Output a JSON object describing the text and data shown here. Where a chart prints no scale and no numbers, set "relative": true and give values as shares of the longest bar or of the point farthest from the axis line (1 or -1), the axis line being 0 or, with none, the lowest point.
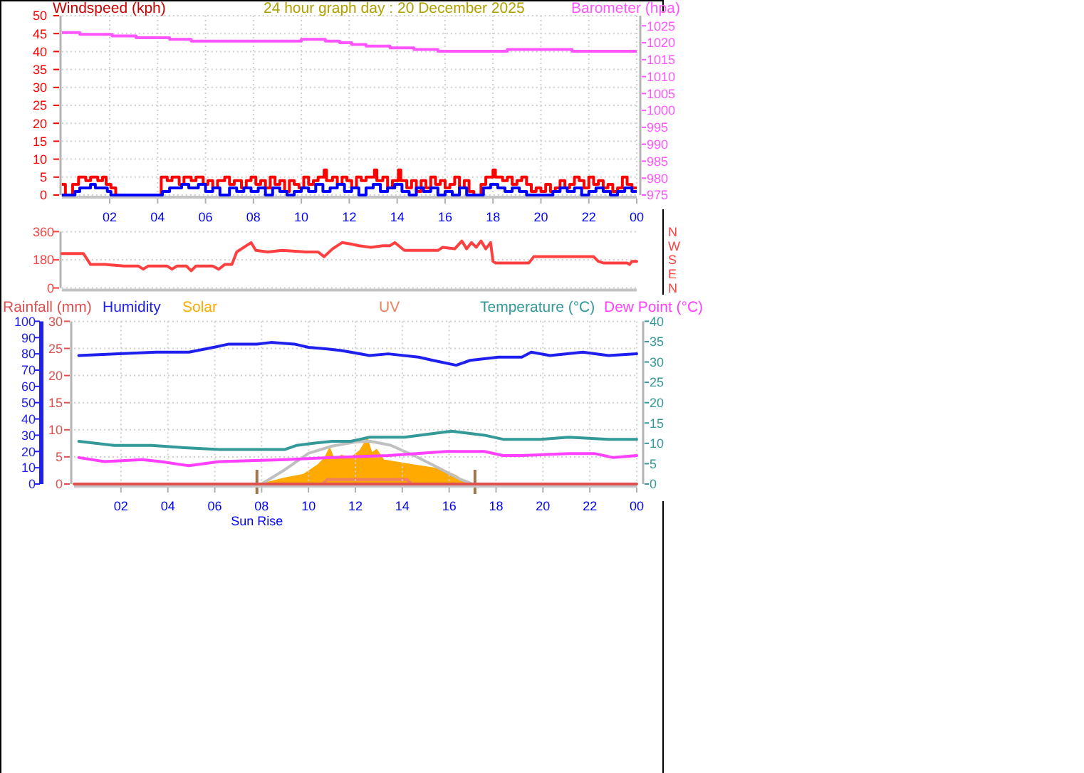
{
  "chart_data": [
    {
      "type": "step",
      "title": "24 hour graph day : 20 December 2025",
      "ylabel": "Windspeed (kph)",
      "y2label": "Barometer (hpa)",
      "xlim": [
        "2025-12-20T00:00",
        "2025-12-21T00:00"
      ],
      "xticks": [
        {
          "value": "2025-12-20T02:00",
          "label": "02"
        },
        {
          "value": "2025-12-20T04:00",
          "label": "04"
        },
        {
          "value": "2025-12-20T06:00",
          "label": "06"
        },
        {
          "value": "2025-12-20T08:00",
          "label": "08"
        },
        {
          "value": "2025-12-20T10:00",
          "label": "10"
        },
        {
          "value": "2025-12-20T12:00",
          "label": "12"
        },
        {
          "value": "2025-12-20T14:00",
          "label": "14"
        },
        {
          "value": "2025-12-20T16:00",
          "label": "16"
        },
        {
          "value": "2025-12-20T18:00",
          "label": "18"
        },
        {
          "value": "2025-12-20T20:00",
          "label": "20"
        },
        {
          "value": "2025-12-20T22:00",
          "label": "22"
        },
        {
          "value": "2025-12-21T00:00",
          "label": "00"
        }
      ],
      "ylim": [
        0,
        50
      ],
      "yticks": [
        0,
        5,
        10,
        15,
        20,
        25,
        30,
        35,
        40,
        45,
        50
      ],
      "y2lim": [
        975,
        1028
      ],
      "y2ticks": [
        975,
        980,
        985,
        990,
        995,
        1000,
        1005,
        1010,
        1015,
        1020,
        1025
      ],
      "grid": true,
      "series": [
        {
          "color": "#ff0000",
          "x": [
            "2025-12-20T00:00",
            "2025-12-20T00:09",
            "2025-12-20T00:27",
            "2025-12-20T00:42",
            "2025-12-20T01:00",
            "2025-12-20T01:12",
            "2025-12-20T01:30",
            "2025-12-20T01:42",
            "2025-12-20T01:51",
            "2025-12-20T02:03",
            "2025-12-20T02:15",
            "2025-12-20T04:09",
            "2025-12-20T04:24",
            "2025-12-20T04:36",
            "2025-12-20T04:54",
            "2025-12-20T05:06",
            "2025-12-20T05:24",
            "2025-12-20T05:36",
            "2025-12-20T05:54",
            "2025-12-20T06:06",
            "2025-12-20T06:18",
            "2025-12-20T06:30",
            "2025-12-20T06:48",
            "2025-12-20T07:00",
            "2025-12-20T07:12",
            "2025-12-20T07:30",
            "2025-12-20T07:42",
            "2025-12-20T07:54",
            "2025-12-20T08:06",
            "2025-12-20T08:18",
            "2025-12-20T08:30",
            "2025-12-20T08:42",
            "2025-12-20T08:54",
            "2025-12-20T09:06",
            "2025-12-20T09:18",
            "2025-12-20T09:30",
            "2025-12-20T09:42",
            "2025-12-20T09:54",
            "2025-12-20T10:06",
            "2025-12-20T10:18",
            "2025-12-20T10:30",
            "2025-12-20T10:42",
            "2025-12-20T10:57",
            "2025-12-20T11:03",
            "2025-12-20T11:18",
            "2025-12-20T11:30",
            "2025-12-20T11:42",
            "2025-12-20T11:54",
            "2025-12-20T12:06",
            "2025-12-20T12:18",
            "2025-12-20T12:30",
            "2025-12-20T12:42",
            "2025-12-20T13:03",
            "2025-12-20T13:09",
            "2025-12-20T13:24",
            "2025-12-20T13:36",
            "2025-12-20T13:48",
            "2025-12-20T14:03",
            "2025-12-20T14:09",
            "2025-12-20T14:24",
            "2025-12-20T14:36",
            "2025-12-20T14:48",
            "2025-12-20T15:00",
            "2025-12-20T15:12",
            "2025-12-20T15:24",
            "2025-12-20T15:36",
            "2025-12-20T15:48",
            "2025-12-20T16:00",
            "2025-12-20T16:12",
            "2025-12-20T16:24",
            "2025-12-20T16:36",
            "2025-12-20T16:48",
            "2025-12-20T17:00",
            "2025-12-20T17:12",
            "2025-12-20T17:30",
            "2025-12-20T17:42",
            "2025-12-20T18:00",
            "2025-12-20T18:06",
            "2025-12-20T18:24",
            "2025-12-20T18:36",
            "2025-12-20T18:48",
            "2025-12-20T19:00",
            "2025-12-20T19:12",
            "2025-12-20T19:24",
            "2025-12-20T19:36",
            "2025-12-20T19:48",
            "2025-12-20T20:00",
            "2025-12-20T20:12",
            "2025-12-20T20:24",
            "2025-12-20T20:36",
            "2025-12-20T20:48",
            "2025-12-20T21:00",
            "2025-12-20T21:12",
            "2025-12-20T21:24",
            "2025-12-20T21:36",
            "2025-12-20T21:48",
            "2025-12-20T22:00",
            "2025-12-20T22:12",
            "2025-12-20T22:24",
            "2025-12-20T22:36",
            "2025-12-20T22:48",
            "2025-12-20T23:00",
            "2025-12-20T23:12",
            "2025-12-20T23:24",
            "2025-12-20T23:36",
            "2025-12-20T23:48",
            "2025-12-21T00:00"
          ],
          "values": [
            3,
            0,
            3,
            5,
            4,
            5,
            4,
            5,
            3,
            2,
            0,
            5,
            4,
            5,
            3,
            5,
            4,
            5,
            3,
            4,
            2,
            4,
            5,
            3,
            4,
            2,
            4,
            5,
            3,
            4,
            2,
            5,
            3,
            4,
            1,
            4,
            3,
            2,
            5,
            3,
            4,
            5,
            7,
            4,
            5,
            3,
            5,
            4,
            2,
            5,
            4,
            5,
            7,
            4,
            5,
            2,
            4,
            7,
            4,
            2,
            4,
            1,
            4,
            2,
            5,
            3,
            4,
            2,
            3,
            5,
            2,
            4,
            1,
            0,
            3,
            5,
            7,
            5,
            4,
            5,
            3,
            4,
            5,
            3,
            1,
            2,
            1,
            3,
            1,
            2,
            4,
            2,
            3,
            5,
            4,
            2,
            5,
            3,
            4,
            2,
            3,
            1,
            2,
            5,
            3,
            2,
            2
          ]
        },
        {
          "color": "#0000ff",
          "x": [
            "2025-12-20T00:00",
            "2025-12-20T00:33",
            "2025-12-20T00:45",
            "2025-12-20T01:12",
            "2025-12-20T01:24",
            "2025-12-20T01:54",
            "2025-12-20T02:03",
            "2025-12-20T04:12",
            "2025-12-20T04:30",
            "2025-12-20T05:00",
            "2025-12-20T05:18",
            "2025-12-20T05:42",
            "2025-12-20T06:00",
            "2025-12-20T06:18",
            "2025-12-20T06:36",
            "2025-12-20T07:00",
            "2025-12-20T07:18",
            "2025-12-20T07:36",
            "2025-12-20T07:54",
            "2025-12-20T08:12",
            "2025-12-20T08:30",
            "2025-12-20T08:48",
            "2025-12-20T09:06",
            "2025-12-20T09:24",
            "2025-12-20T09:42",
            "2025-12-20T10:00",
            "2025-12-20T10:18",
            "2025-12-20T10:36",
            "2025-12-20T10:54",
            "2025-12-20T11:12",
            "2025-12-20T11:30",
            "2025-12-20T11:48",
            "2025-12-20T12:06",
            "2025-12-20T12:24",
            "2025-12-20T12:42",
            "2025-12-20T13:00",
            "2025-12-20T13:18",
            "2025-12-20T13:36",
            "2025-12-20T13:54",
            "2025-12-20T14:12",
            "2025-12-20T14:30",
            "2025-12-20T14:48",
            "2025-12-20T15:06",
            "2025-12-20T15:24",
            "2025-12-20T15:42",
            "2025-12-20T16:00",
            "2025-12-20T16:18",
            "2025-12-20T16:36",
            "2025-12-20T16:54",
            "2025-12-20T17:36",
            "2025-12-20T17:54",
            "2025-12-20T18:12",
            "2025-12-20T18:30",
            "2025-12-20T18:48",
            "2025-12-20T19:06",
            "2025-12-20T19:24",
            "2025-12-20T20:30",
            "2025-12-20T20:48",
            "2025-12-20T21:06",
            "2025-12-20T21:24",
            "2025-12-20T21:42",
            "2025-12-20T22:00",
            "2025-12-20T22:18",
            "2025-12-20T22:36",
            "2025-12-20T22:54",
            "2025-12-20T23:12",
            "2025-12-20T23:30",
            "2025-12-20T23:48",
            "2025-12-21T00:00"
          ],
          "values": [
            0,
            1,
            2,
            3,
            2,
            1,
            0,
            1,
            2,
            3,
            2,
            3,
            1,
            2,
            0,
            2,
            1,
            2,
            1,
            2,
            0,
            2,
            1,
            0,
            1,
            2,
            1,
            3,
            1,
            2,
            3,
            1,
            2,
            0,
            2,
            3,
            1,
            2,
            3,
            1,
            0,
            2,
            1,
            2,
            0,
            1,
            0,
            2,
            0,
            2,
            3,
            2,
            1,
            2,
            1,
            0,
            1,
            2,
            1,
            2,
            0,
            1,
            2,
            1,
            0,
            1,
            2,
            1,
            1
          ]
        },
        {
          "color": "#ff55ff",
          "axis": "y2",
          "x": [
            "2025-12-20T00:00",
            "2025-12-20T00:45",
            "2025-12-20T02:06",
            "2025-12-20T03:06",
            "2025-12-20T03:42",
            "2025-12-20T04:30",
            "2025-12-20T05:24",
            "2025-12-20T10:00",
            "2025-12-20T11:00",
            "2025-12-20T11:36",
            "2025-12-20T12:06",
            "2025-12-20T12:42",
            "2025-12-20T13:42",
            "2025-12-20T14:42",
            "2025-12-20T15:42",
            "2025-12-20T17:06",
            "2025-12-20T18:36",
            "2025-12-20T21:18",
            "2025-12-21T00:00"
          ],
          "values": [
            1023,
            1022.5,
            1022,
            1021.5,
            1021.5,
            1021,
            1020.5,
            1021,
            1020.5,
            1020,
            1019.5,
            1019,
            1018.5,
            1018,
            1017.5,
            1017.5,
            1018,
            1017.5,
            1017.5
          ]
        }
      ]
    },
    {
      "type": "line",
      "xlim": [
        "2025-12-20T00:00",
        "2025-12-21T00:00"
      ],
      "ylim": [
        0,
        360
      ],
      "yticks": [
        0,
        180,
        360
      ],
      "tick_labels": "y",
      "grid": "y",
      "annotations": [
        "N",
        "W",
        "S",
        "E",
        "N"
      ],
      "series": [
        {
          "color": "#ff4040",
          "x": [
            "2025-12-20T00:00",
            "2025-12-20T00:54",
            "2025-12-20T01:12",
            "2025-12-20T01:48",
            "2025-12-20T02:36",
            "2025-12-20T03:12",
            "2025-12-20T03:24",
            "2025-12-20T03:36",
            "2025-12-20T04:24",
            "2025-12-20T04:36",
            "2025-12-20T04:48",
            "2025-12-20T05:12",
            "2025-12-20T05:24",
            "2025-12-20T05:36",
            "2025-12-20T06:18",
            "2025-12-20T06:33",
            "2025-12-20T06:48",
            "2025-12-20T07:06",
            "2025-12-20T07:18",
            "2025-12-20T07:54",
            "2025-12-20T08:06",
            "2025-12-20T08:36",
            "2025-12-20T09:12",
            "2025-12-20T10:12",
            "2025-12-20T10:42",
            "2025-12-20T10:57",
            "2025-12-20T11:18",
            "2025-12-20T11:42",
            "2025-12-20T12:06",
            "2025-12-20T12:24",
            "2025-12-20T12:54",
            "2025-12-20T13:24",
            "2025-12-20T13:42",
            "2025-12-20T13:54",
            "2025-12-20T14:18",
            "2025-12-20T15:00",
            "2025-12-20T15:42",
            "2025-12-20T15:54",
            "2025-12-20T16:24",
            "2025-12-20T16:42",
            "2025-12-20T16:54",
            "2025-12-20T17:06",
            "2025-12-20T17:18",
            "2025-12-20T17:30",
            "2025-12-20T17:42",
            "2025-12-20T17:54",
            "2025-12-20T18:00",
            "2025-12-20T18:06",
            "2025-12-20T19:30",
            "2025-12-20T19:42",
            "2025-12-20T22:12",
            "2025-12-20T22:24",
            "2025-12-20T22:36",
            "2025-12-20T23:36",
            "2025-12-20T23:42",
            "2025-12-20T23:48",
            "2025-12-21T00:00"
          ],
          "values": [
            220,
            220,
            150,
            150,
            140,
            140,
            120,
            140,
            140,
            120,
            140,
            140,
            110,
            140,
            140,
            120,
            150,
            150,
            230,
            290,
            240,
            230,
            240,
            230,
            230,
            200,
            250,
            290,
            280,
            270,
            260,
            270,
            270,
            290,
            240,
            240,
            240,
            260,
            250,
            300,
            250,
            290,
            260,
            300,
            250,
            290,
            170,
            160,
            160,
            200,
            200,
            170,
            160,
            160,
            150,
            170,
            170
          ]
        }
      ]
    },
    {
      "type": "line",
      "xlim": [
        "2025-12-20T00:00",
        "2025-12-21T00:00"
      ],
      "xticks": [
        {
          "value": "2025-12-20T02:00",
          "label": "02"
        },
        {
          "value": "2025-12-20T04:00",
          "label": "04"
        },
        {
          "value": "2025-12-20T06:00",
          "label": "06"
        },
        {
          "value": "2025-12-20T08:00",
          "label": "08"
        },
        {
          "value": "2025-12-20T10:00",
          "label": "10"
        },
        {
          "value": "2025-12-20T12:00",
          "label": "12"
        },
        {
          "value": "2025-12-20T14:00",
          "label": "14"
        },
        {
          "value": "2025-12-20T16:00",
          "label": "16"
        },
        {
          "value": "2025-12-20T18:00",
          "label": "18"
        },
        {
          "value": "2025-12-20T20:00",
          "label": "20"
        },
        {
          "value": "2025-12-20T22:00",
          "label": "22"
        },
        {
          "value": "2025-12-21T00:00",
          "label": "00"
        }
      ],
      "ylim": [
        0,
        30
      ],
      "yticks": [
        0,
        5,
        10,
        15,
        20,
        25,
        30
      ],
      "y2lim": [
        0,
        40
      ],
      "y2ticks": [
        0,
        5,
        10,
        15,
        20,
        25,
        30,
        35,
        40
      ],
      "y3lim": [
        0,
        100
      ],
      "y3ticks": [
        0,
        10,
        20,
        30,
        40,
        50,
        60,
        70,
        80,
        90,
        100
      ],
      "grid": true,
      "legend": "top",
      "series": [
        {
          "name": "Rainfall (mm)",
          "color": "#e05050",
          "x": [
            "2025-12-20T00:00",
            "2025-12-21T00:00"
          ],
          "values": [
            0,
            0
          ]
        },
        {
          "name": "Humidity",
          "color": "#2020ee",
          "axis": "y3",
          "x": [
            "2025-12-20T00:12",
            "2025-12-20T01:54",
            "2025-12-20T03:30",
            "2025-12-20T04:54",
            "2025-12-20T05:57",
            "2025-12-20T06:36",
            "2025-12-20T07:48",
            "2025-12-20T08:24",
            "2025-12-20T09:24",
            "2025-12-20T10:00",
            "2025-12-20T10:48",
            "2025-12-20T11:24",
            "2025-12-20T11:48",
            "2025-12-20T12:36",
            "2025-12-20T13:24",
            "2025-12-20T14:42",
            "2025-12-20T15:18",
            "2025-12-20T16:18",
            "2025-12-20T16:54",
            "2025-12-20T18:06",
            "2025-12-20T19:06",
            "2025-12-20T19:30",
            "2025-12-20T20:18",
            "2025-12-20T21:42",
            "2025-12-20T22:48",
            "2025-12-21T00:00"
          ],
          "values": [
            79,
            80,
            81,
            81,
            84,
            86,
            86,
            87,
            86,
            84,
            83,
            82,
            81,
            79,
            80,
            78,
            76,
            73,
            76,
            78,
            78,
            81,
            79,
            81,
            79,
            80
          ]
        },
        {
          "name": "Temperature (°C)",
          "color": "#339999",
          "axis": "y2",
          "x": [
            "2025-12-20T00:12",
            "2025-12-20T01:42",
            "2025-12-20T03:18",
            "2025-12-20T04:30",
            "2025-12-20T06:12",
            "2025-12-20T09:00",
            "2025-12-20T09:30",
            "2025-12-20T10:12",
            "2025-12-20T11:00",
            "2025-12-20T11:48",
            "2025-12-20T12:36",
            "2025-12-20T14:06",
            "2025-12-20T16:06",
            "2025-12-20T17:30",
            "2025-12-20T18:18",
            "2025-12-20T19:54",
            "2025-12-20T21:06",
            "2025-12-20T22:48",
            "2025-12-21T00:00"
          ],
          "values": [
            10.5,
            9.5,
            9.5,
            9,
            8.5,
            8.5,
            9.5,
            10,
            10.5,
            10.5,
            11.5,
            11.5,
            13,
            12,
            11,
            11,
            11.5,
            11,
            11
          ]
        },
        {
          "name": "Dew Point (°C)",
          "color": "#ff40ff",
          "axis": "y2",
          "x": [
            "2025-12-20T00:12",
            "2025-12-20T01:18",
            "2025-12-20T02:54",
            "2025-12-20T03:42",
            "2025-12-20T04:54",
            "2025-12-20T06:12",
            "2025-12-20T09:00",
            "2025-12-20T11:00",
            "2025-12-20T13:24",
            "2025-12-20T15:54",
            "2025-12-20T17:30",
            "2025-12-20T18:18",
            "2025-12-20T19:06",
            "2025-12-20T21:06",
            "2025-12-20T22:12",
            "2025-12-20T23:00",
            "2025-12-21T00:00"
          ],
          "values": [
            6.5,
            5.5,
            6,
            5.5,
            4.5,
            5.5,
            6,
            6.5,
            7,
            8,
            8,
            7,
            7,
            7.5,
            7.5,
            6.5,
            7
          ]
        }
      ]
    },
    {
      "type": "area",
      "relative": true,
      "xlim": [
        "2025-12-20T00:00",
        "2025-12-21T00:00"
      ],
      "tick_labels": false,
      "legend": "top",
      "ref_lines": [
        {
          "axis": "x",
          "value": "2025-12-20T07:48",
          "label": "Sun Rise",
          "color": "#a07850"
        },
        {
          "axis": "x",
          "value": "2025-12-20T17:06",
          "color": "#a07850"
        }
      ],
      "series": [
        {
          "name": "Solar",
          "color": "#ffaa00",
          "x": [
            "2025-12-20T08:00",
            "2025-12-20T09:00",
            "2025-12-20T09:48",
            "2025-12-20T10:24",
            "2025-12-20T10:42",
            "2025-12-20T10:54",
            "2025-12-20T11:06",
            "2025-12-20T11:24",
            "2025-12-20T11:48",
            "2025-12-20T12:12",
            "2025-12-20T12:30",
            "2025-12-20T12:42",
            "2025-12-20T12:54",
            "2025-12-20T13:12",
            "2025-12-20T13:54",
            "2025-12-20T14:30",
            "2025-12-20T15:06",
            "2025-12-20T15:42",
            "2025-12-20T16:18",
            "2025-12-20T16:48"
          ],
          "values": [
            0,
            0.13,
            0.21,
            0.42,
            0.58,
            0.79,
            0.53,
            0.63,
            0.58,
            0.74,
            1,
            0.68,
            0.76,
            0.53,
            0.47,
            0.42,
            0.37,
            0.32,
            0.18,
            0
          ]
        },
        {
          "name": "UV",
          "type": "line",
          "color": "#f08060",
          "x": [
            "2025-12-20T10:36",
            "2025-12-20T10:48",
            "2025-12-20T14:12",
            "2025-12-20T14:24"
          ],
          "values": [
            0,
            0.1,
            0.1,
            0
          ]
        },
        {
          "type": "line",
          "color": "#c0c0c0",
          "x": [
            "2025-12-20T08:00",
            "2025-12-20T09:00",
            "2025-12-20T10:00",
            "2025-12-20T11:00",
            "2025-12-20T12:00",
            "2025-12-20T12:36",
            "2025-12-20T13:30",
            "2025-12-20T14:30",
            "2025-12-20T15:30",
            "2025-12-20T16:30",
            "2025-12-20T17:00"
          ],
          "values": [
            0,
            0.32,
            0.68,
            0.84,
            0.93,
            0.95,
            0.86,
            0.63,
            0.37,
            0.1,
            0
          ]
        }
      ]
    }
  ]
}
